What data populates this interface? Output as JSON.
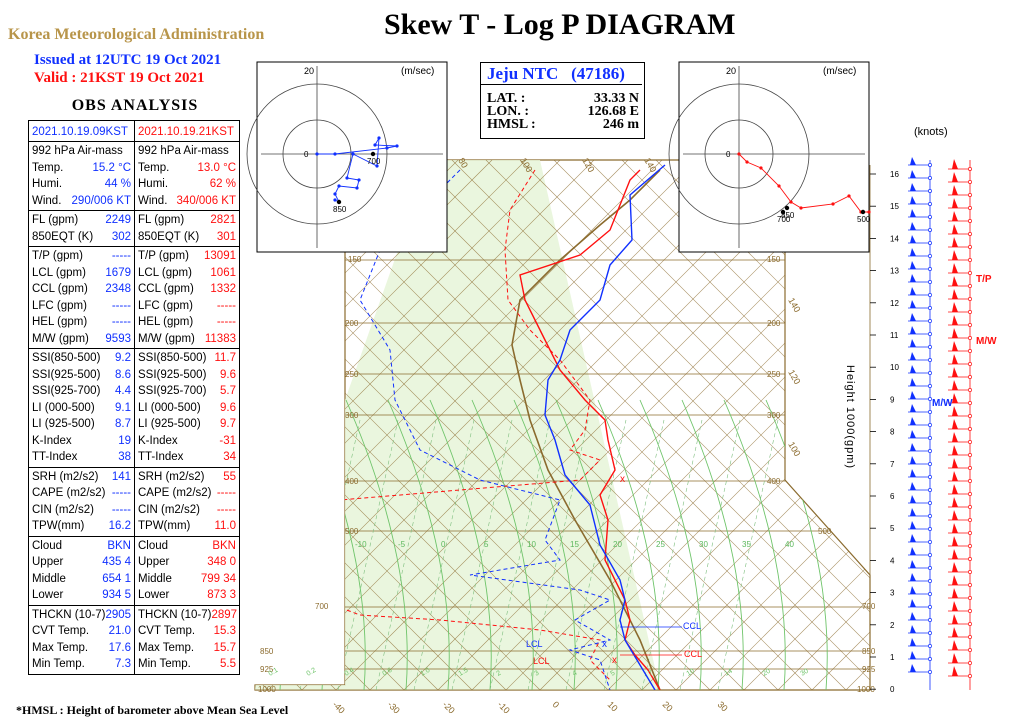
{
  "header": {
    "agency": "Korea Meteorological Administration",
    "title": "Skew T - Log P DIAGRAM",
    "issued": "Issued at 12UTC 19 Oct 2021",
    "valid": "Valid :  21KST 19 Oct 2021",
    "obs_heading": "OBS  ANALYSIS"
  },
  "station": {
    "name": "Jeju NTC",
    "id": "(47186)",
    "lat_label": "LAT.  :",
    "lat": "33.33 N",
    "lon_label": "LON.  :",
    "lon": "126.68 E",
    "hmsl_label": "HMSL  :",
    "hmsl": "246 m"
  },
  "footnote": "*HMSL : Height of barometer above Mean Sea Level",
  "obs": {
    "col_left_date": "2021.10.19.09KST",
    "col_right_date": "2021.10.19.21KST",
    "groups": [
      [
        {
          "l": "992  hPa Air-mass",
          "lv": "",
          "r": "992  hPa Air-mass",
          "rv": ""
        },
        {
          "l": "Temp.",
          "lv": "15.2 °C",
          "r": "Temp.",
          "rv": "13.0 °C"
        },
        {
          "l": "Humi.",
          "lv": "44  %",
          "r": "Humi.",
          "rv": "62  %"
        },
        {
          "l": "Wind.",
          "lv": "290/006 KT",
          "r": "Wind.",
          "rv": "340/006 KT"
        }
      ],
      [
        {
          "l": "FL (gpm)",
          "lv": "2249",
          "r": "FL (gpm)",
          "rv": "2821"
        },
        {
          "l": "850EQT (K)",
          "lv": "302",
          "r": "850EQT (K)",
          "rv": "301"
        }
      ],
      [
        {
          "l": "T/P (gpm)",
          "lv": "-----",
          "r": "T/P (gpm)",
          "rv": "13091"
        },
        {
          "l": "LCL (gpm)",
          "lv": "1679",
          "r": "LCL (gpm)",
          "rv": "1061"
        },
        {
          "l": "CCL (gpm)",
          "lv": "2348",
          "r": "CCL (gpm)",
          "rv": "1332"
        },
        {
          "l": "LFC (gpm)",
          "lv": "-----",
          "r": "LFC (gpm)",
          "rv": "-----"
        },
        {
          "l": "HEL (gpm)",
          "lv": "-----",
          "r": "HEL (gpm)",
          "rv": "-----"
        },
        {
          "l": "M/W (gpm)",
          "lv": "9593",
          "r": "M/W (gpm)",
          "rv": "11383"
        }
      ],
      [
        {
          "l": "SSI(850-500)",
          "lv": "9.2",
          "r": "SSI(850-500)",
          "rv": "11.7"
        },
        {
          "l": "SSI(925-500)",
          "lv": "8.6",
          "r": "SSI(925-500)",
          "rv": "9.6"
        },
        {
          "l": "SSI(925-700)",
          "lv": "4.4",
          "r": "SSI(925-700)",
          "rv": "5.7"
        },
        {
          "l": "LI (000-500)",
          "lv": "9.1",
          "r": "LI (000-500)",
          "rv": "9.6"
        },
        {
          "l": "LI (925-500)",
          "lv": "8.7",
          "r": "LI (925-500)",
          "rv": "9.7"
        },
        {
          "l": "K-Index",
          "lv": "19",
          "r": "K-Index",
          "rv": "-31"
        },
        {
          "l": "TT-Index",
          "lv": "38",
          "r": "TT-Index",
          "rv": "34"
        }
      ],
      [
        {
          "l": "SRH (m2/s2)",
          "lv": "141",
          "r": "SRH (m2/s2)",
          "rv": "55"
        },
        {
          "l": "CAPE (m2/s2)",
          "lv": "-----",
          "r": "CAPE (m2/s2)",
          "rv": "-----"
        },
        {
          "l": "CIN (m2/s2)",
          "lv": "-----",
          "r": "CIN (m2/s2)",
          "rv": "-----"
        },
        {
          "l": "TPW(mm)",
          "lv": "16.2",
          "r": "TPW(mm)",
          "rv": "11.0"
        }
      ],
      [
        {
          "l": "Cloud",
          "lv": "BKN",
          "r": "Cloud",
          "rv": "BKN"
        },
        {
          "l": "Upper",
          "lv": "435    4",
          "r": "Upper",
          "rv": "348    0"
        },
        {
          "l": "Middle",
          "lv": "654    1",
          "r": "Middle",
          "rv": "799   34"
        },
        {
          "l": "Lower",
          "lv": "934    5",
          "r": "Lower",
          "rv": "873    3"
        }
      ],
      [
        {
          "l": "THCKN (10-7)",
          "lv": "2905",
          "r": "THCKN (10-7)",
          "rv": "2897"
        },
        {
          "l": "CVT Temp.",
          "lv": "21.0",
          "r": "CVT Temp.",
          "rv": "15.3"
        },
        {
          "l": "Max Temp.",
          "lv": "17.6",
          "r": "Max Temp.",
          "rv": "15.7"
        },
        {
          "l": "Min Temp.",
          "lv": "7.3",
          "r": "Min Temp.",
          "rv": "5.5"
        }
      ]
    ]
  },
  "hodograph_left": {
    "ring_label": "20",
    "unit": "(m/sec)",
    "labels": [
      "700",
      "850"
    ]
  },
  "hodograph_right": {
    "ring_label": "20",
    "unit": "(m/sec)",
    "labels": [
      "850",
      "700",
      "500"
    ]
  },
  "skewt": {
    "pressure_levels": [
      "150",
      "200",
      "250",
      "300",
      "400",
      "500",
      "700",
      "850",
      "925",
      "1000"
    ],
    "height_labels": [
      "16",
      "15",
      "14",
      "13",
      "12",
      "11",
      "10",
      "9",
      "8",
      "7",
      "6",
      "5",
      "4",
      "3",
      "2",
      "1",
      "0"
    ],
    "knots_label": "(knots)",
    "height_axis_label": "Height  1000(gpm)",
    "temp_bottom_labels": [
      "-40",
      "-30",
      "-20",
      "-10",
      "0",
      "10",
      "20",
      "30"
    ],
    "mixing_labels": [
      "0.1",
      "0.2",
      "0.4",
      "0.6",
      "1.0",
      "1.5",
      "2",
      "3",
      "4",
      "5",
      "7",
      "10",
      "14",
      "20",
      "30"
    ],
    "green_labels": [
      "-10",
      "-5",
      "0",
      "5",
      "10",
      "15",
      "20",
      "25",
      "30",
      "35",
      "40"
    ],
    "theta_labels": [
      "80",
      "100",
      "120",
      "140",
      "-80",
      "-70",
      "-60",
      "-50",
      "-40",
      "-30",
      "-20",
      "-10",
      "0",
      "10",
      "20",
      "30",
      "40",
      "50",
      "60"
    ],
    "top_labels": [
      "80",
      "100",
      "120",
      "140"
    ],
    "right_labels": [
      "140",
      "120",
      "100"
    ],
    "markers": {
      "tp": "T/P",
      "mw_right": "M/W",
      "mw_blue": "M/W",
      "ccl_blue": "CCL",
      "ccl_red": "CCL",
      "lcl_blue": "LCL",
      "lcl_red": "LCL"
    }
  }
}
